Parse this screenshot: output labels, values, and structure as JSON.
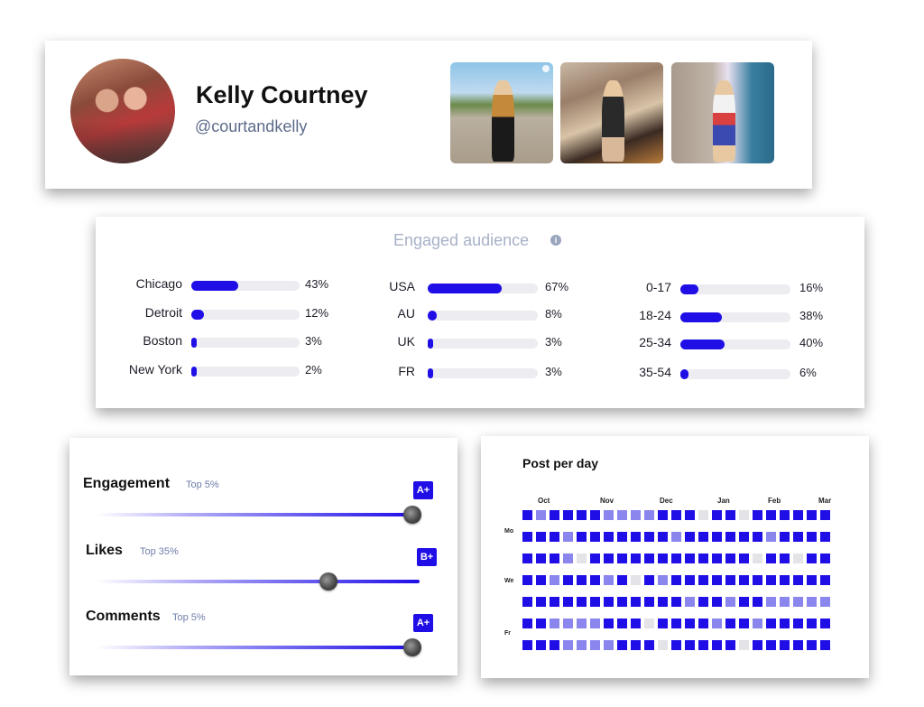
{
  "profile": {
    "name": "Kelly Courtney",
    "handle": "@courtandkelly",
    "photos": [
      "festival-photo",
      "shop-photo",
      "street-photo"
    ]
  },
  "audience": {
    "title": "Engaged audience",
    "cities": [
      {
        "label": "Chicago",
        "value": 43,
        "pct": "43%"
      },
      {
        "label": "Detroit",
        "value": 12,
        "pct": "12%"
      },
      {
        "label": "Boston",
        "value": 3,
        "pct": "3%"
      },
      {
        "label": "New York",
        "value": 2,
        "pct": "2%"
      }
    ],
    "countries": [
      {
        "label": "USA",
        "value": 67,
        "pct": "67%"
      },
      {
        "label": "AU",
        "value": 8,
        "pct": "8%"
      },
      {
        "label": "UK",
        "value": 3,
        "pct": "3%"
      },
      {
        "label": "FR",
        "value": 3,
        "pct": "3%"
      }
    ],
    "ages": [
      {
        "label": "0-17",
        "value": 16,
        "pct": "16%"
      },
      {
        "label": "18-24",
        "value": 38,
        "pct": "38%"
      },
      {
        "label": "25-34",
        "value": 40,
        "pct": "40%"
      },
      {
        "label": "35-54",
        "value": 6,
        "pct": "6%"
      }
    ]
  },
  "scores": [
    {
      "name": "Engagement",
      "top": "Top 5%",
      "grade": "A+",
      "level": 1.0
    },
    {
      "name": "Likes",
      "top": "Top 35%",
      "grade": "B+",
      "level": 0.78
    },
    {
      "name": "Comments",
      "top": "Top 5%",
      "grade": "A+",
      "level": 1.0
    }
  ],
  "posts_per_day": {
    "title": "Post per day",
    "months": [
      "Oct",
      "Nov",
      "Dec",
      "Jan",
      "Feb",
      "Mar"
    ],
    "days": [
      "Mo",
      "We",
      "Fr"
    ],
    "levels": [
      "HLHHHHLLLLHHHEHHEHHHHHH",
      "HHHLHHHHHHHLHHHHHHLHHHH",
      "HHHLEHHHHHHHHHHHHEHHEHH",
      "HHLHHHLHEHLHHHHHHHHHHHH",
      "HHHHHHHHHHHHLHHLHHLLLLL",
      "HHLLLLHHHEHHHHLHHLHHHHH",
      "HHHLLLLHHHEHHHHHEHHHHHH"
    ],
    "colors": {
      "H": "#1f0ee6",
      "L": "#8a86ee",
      "E": "#e3e3e8"
    }
  },
  "colors": {
    "accent": "#1f0ee6",
    "track": "#ececf1"
  }
}
